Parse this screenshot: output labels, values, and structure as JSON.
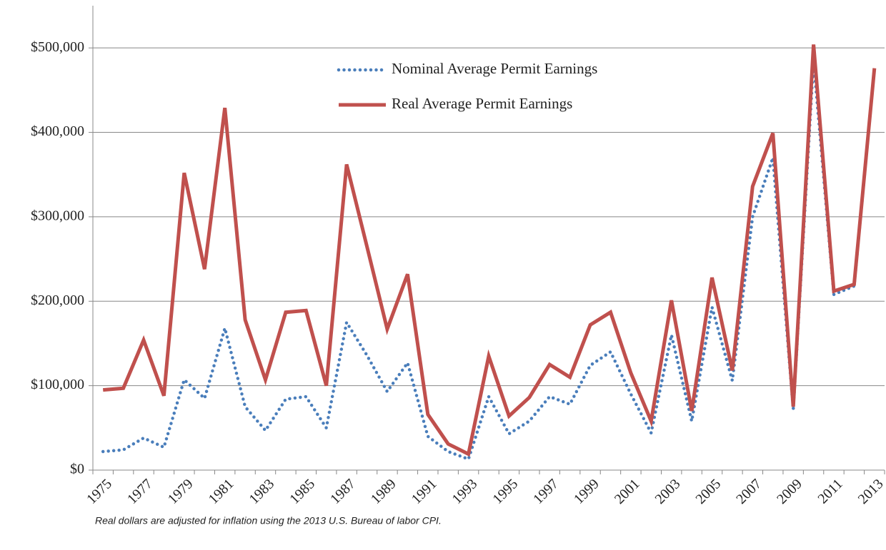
{
  "chart_data": {
    "type": "line",
    "categories": [
      "1975",
      null,
      "1977",
      null,
      "1979",
      null,
      "1981",
      null,
      "1983",
      null,
      "1985",
      null,
      "1987",
      null,
      "1989",
      null,
      "1991",
      null,
      "1993",
      null,
      "1995",
      null,
      "1997",
      null,
      "1999",
      null,
      "2001",
      null,
      "2003",
      null,
      "2005",
      null,
      "2007",
      null,
      "2009",
      null,
      "2011",
      null,
      "2013"
    ],
    "series": [
      {
        "name": "Nominal Average Permit Earnings",
        "color": "#4a7ebb",
        "style": "dotted",
        "values": [
          22000,
          24000,
          38000,
          27000,
          107000,
          85000,
          168000,
          75000,
          47000,
          84000,
          87000,
          50000,
          175000,
          136000,
          93000,
          127000,
          40000,
          22000,
          13000,
          87000,
          43000,
          58000,
          87000,
          78000,
          124000,
          140000,
          90000,
          44000,
          160000,
          58000,
          193000,
          106000,
          300000,
          370000,
          72000,
          485000,
          208000,
          218000,
          476000
        ]
      },
      {
        "name": "Real Average Permit Earnings",
        "color": "#c0504d",
        "style": "solid",
        "values": [
          95000,
          97000,
          154000,
          88000,
          352000,
          238000,
          429000,
          178000,
          107000,
          187000,
          189000,
          100000,
          362000,
          265000,
          167000,
          232000,
          66000,
          31000,
          19000,
          135000,
          64000,
          86000,
          125000,
          110000,
          172000,
          187000,
          115000,
          58000,
          201000,
          70000,
          228000,
          118000,
          336000,
          399000,
          75000,
          504000,
          212000,
          220000,
          476000
        ]
      }
    ],
    "ylim": [
      0,
      550000
    ],
    "yticks": [
      {
        "value": 0,
        "label": "$0"
      },
      {
        "value": 100000,
        "label": "$100,000"
      },
      {
        "value": 200000,
        "label": "$200,000"
      },
      {
        "value": 300000,
        "label": "$300,000"
      },
      {
        "value": 400000,
        "label": "$400,000"
      },
      {
        "value": 500000,
        "label": "$500,000"
      }
    ],
    "grid": true,
    "note": "Real dollars are adjusted for inflation using the 2013 U.S. Bureau of labor CPI."
  }
}
